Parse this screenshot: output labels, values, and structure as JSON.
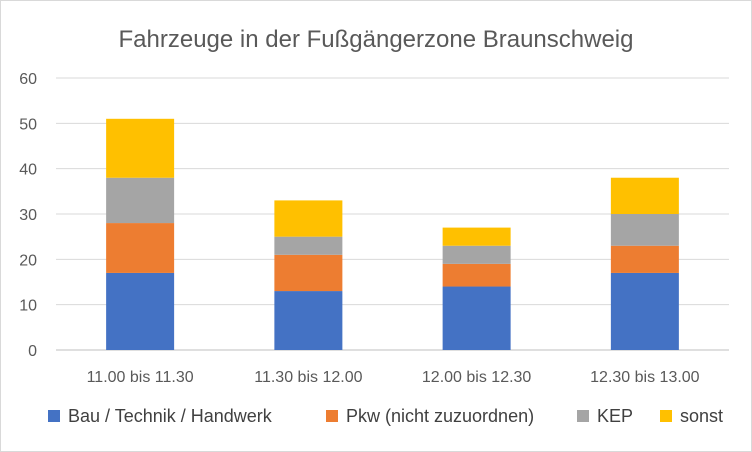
{
  "chart_data": {
    "type": "bar",
    "stacked": true,
    "title": "Fahrzeuge in der Fußgängerzone Braunschweig",
    "xlabel": "",
    "ylabel": "",
    "ylim": [
      0,
      60
    ],
    "yticks": [
      0,
      10,
      20,
      30,
      40,
      50,
      60
    ],
    "grid": true,
    "legend_position": "bottom",
    "categories": [
      "11.00 bis 11.30",
      "11.30 bis 12.00",
      "12.00 bis 12.30",
      "12.30 bis 13.00"
    ],
    "series": [
      {
        "name": "Bau / Technik / Handwerk",
        "color": "#4472c4",
        "values": [
          17,
          13,
          14,
          17
        ]
      },
      {
        "name": "Pkw (nicht zuzuordnen)",
        "color": "#ed7d31",
        "values": [
          11,
          8,
          5,
          6
        ]
      },
      {
        "name": "KEP",
        "color": "#a5a5a5",
        "values": [
          10,
          4,
          4,
          7
        ]
      },
      {
        "name": "sonst",
        "color": "#ffc000",
        "values": [
          13,
          8,
          4,
          8
        ]
      }
    ]
  }
}
